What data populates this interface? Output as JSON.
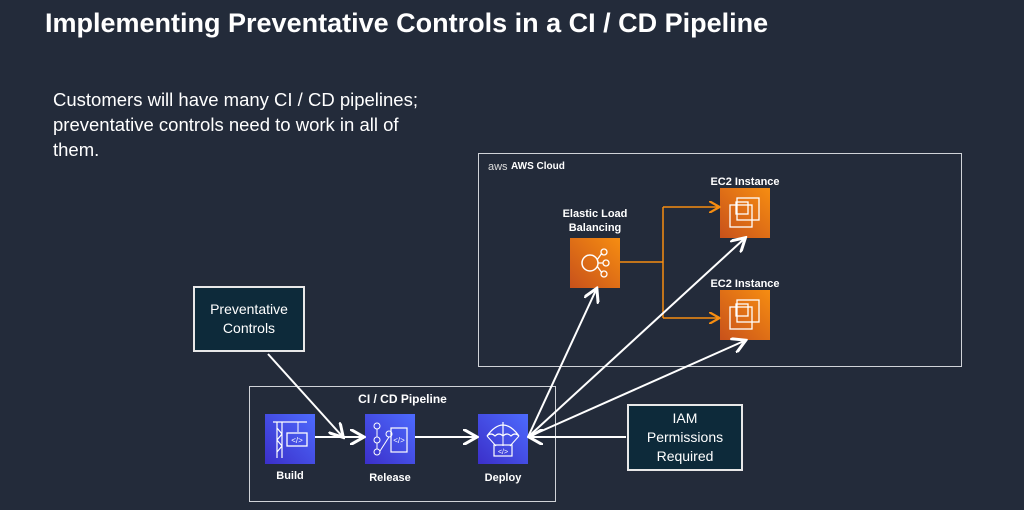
{
  "title": "Implementing Preventative Controls in a CI / CD Pipeline",
  "body_text": "Customers will have many CI / CD pipelines;  preventative controls need to work in all of them.",
  "aws_cloud": {
    "logo": "aws",
    "label": "AWS Cloud"
  },
  "elb": {
    "label": "Elastic Load Balancing",
    "icon": "load-balancer-icon"
  },
  "ec2": [
    {
      "label": "EC2 Instance",
      "icon": "ec2-chip-icon"
    },
    {
      "label": "EC2 Instance",
      "icon": "ec2-chip-icon"
    }
  ],
  "pipeline": {
    "title": "CI / CD Pipeline",
    "stages": [
      {
        "label": "Build",
        "icon": "crane-code-icon"
      },
      {
        "label": "Release",
        "icon": "git-branch-code-icon"
      },
      {
        "label": "Deploy",
        "icon": "parachute-code-icon"
      }
    ]
  },
  "callouts": {
    "preventative": "Preventative Controls",
    "iam": "IAM Permissions Required"
  },
  "colors": {
    "background": "#232b3a",
    "orange": "#f68d11",
    "blue": "#4d6bfe",
    "callout_fill": "#0d2a3a"
  }
}
